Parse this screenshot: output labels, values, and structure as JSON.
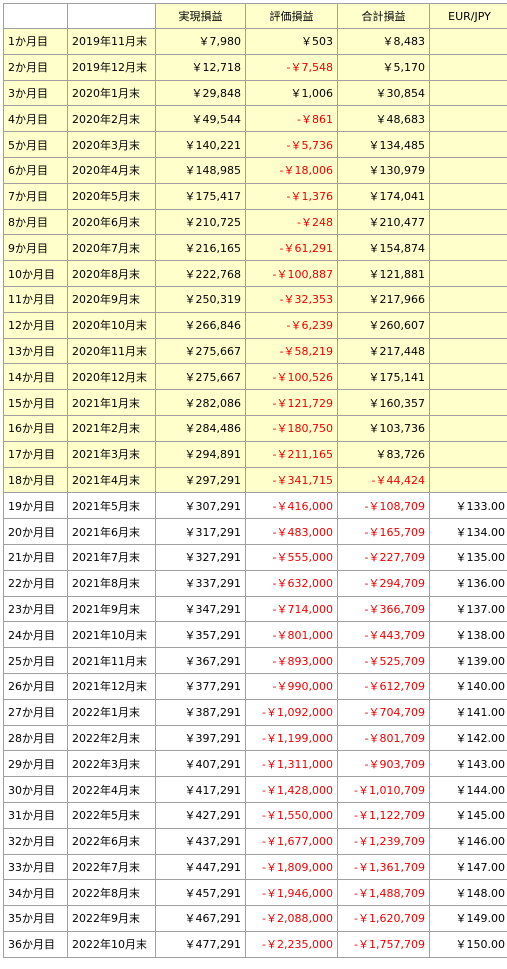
{
  "headers": [
    "",
    "",
    "実現損益",
    "評価損益",
    "合計損益",
    "EUR/JPY"
  ],
  "colors": {
    "highlight": "#ffffcc",
    "negative": "#ee0000",
    "border": "#a0a0a0"
  },
  "rows": [
    {
      "month": "1か月目",
      "date": "2019年11月末",
      "realized": "￥7,980",
      "unrealized": "￥503",
      "total": "￥8,483",
      "rate": "",
      "highlight": true,
      "neg_unrealized": false,
      "neg_total": false
    },
    {
      "month": "2か月目",
      "date": "2019年12月末",
      "realized": "￥12,718",
      "unrealized": "-￥7,548",
      "total": "￥5,170",
      "rate": "",
      "highlight": true,
      "neg_unrealized": true,
      "neg_total": false
    },
    {
      "month": "3か月目",
      "date": "2020年1月末",
      "realized": "￥29,848",
      "unrealized": "￥1,006",
      "total": "￥30,854",
      "rate": "",
      "highlight": true,
      "neg_unrealized": false,
      "neg_total": false
    },
    {
      "month": "4か月目",
      "date": "2020年2月末",
      "realized": "￥49,544",
      "unrealized": "-￥861",
      "total": "￥48,683",
      "rate": "",
      "highlight": true,
      "neg_unrealized": true,
      "neg_total": false
    },
    {
      "month": "5か月目",
      "date": "2020年3月末",
      "realized": "￥140,221",
      "unrealized": "-￥5,736",
      "total": "￥134,485",
      "rate": "",
      "highlight": true,
      "neg_unrealized": true,
      "neg_total": false
    },
    {
      "month": "6か月目",
      "date": "2020年4月末",
      "realized": "￥148,985",
      "unrealized": "-￥18,006",
      "total": "￥130,979",
      "rate": "",
      "highlight": true,
      "neg_unrealized": true,
      "neg_total": false
    },
    {
      "month": "7か月目",
      "date": "2020年5月末",
      "realized": "￥175,417",
      "unrealized": "-￥1,376",
      "total": "￥174,041",
      "rate": "",
      "highlight": true,
      "neg_unrealized": true,
      "neg_total": false
    },
    {
      "month": "8か月目",
      "date": "2020年6月末",
      "realized": "￥210,725",
      "unrealized": "-￥248",
      "total": "￥210,477",
      "rate": "",
      "highlight": true,
      "neg_unrealized": true,
      "neg_total": false
    },
    {
      "month": "9か月目",
      "date": "2020年7月末",
      "realized": "￥216,165",
      "unrealized": "-￥61,291",
      "total": "￥154,874",
      "rate": "",
      "highlight": true,
      "neg_unrealized": true,
      "neg_total": false
    },
    {
      "month": "10か月目",
      "date": "2020年8月末",
      "realized": "￥222,768",
      "unrealized": "-￥100,887",
      "total": "￥121,881",
      "rate": "",
      "highlight": true,
      "neg_unrealized": true,
      "neg_total": false
    },
    {
      "month": "11か月目",
      "date": "2020年9月末",
      "realized": "￥250,319",
      "unrealized": "-￥32,353",
      "total": "￥217,966",
      "rate": "",
      "highlight": true,
      "neg_unrealized": true,
      "neg_total": false
    },
    {
      "month": "12か月目",
      "date": "2020年10月末",
      "realized": "￥266,846",
      "unrealized": "-￥6,239",
      "total": "￥260,607",
      "rate": "",
      "highlight": true,
      "neg_unrealized": true,
      "neg_total": false
    },
    {
      "month": "13か月目",
      "date": "2020年11月末",
      "realized": "￥275,667",
      "unrealized": "-￥58,219",
      "total": "￥217,448",
      "rate": "",
      "highlight": true,
      "neg_unrealized": true,
      "neg_total": false
    },
    {
      "month": "14か月目",
      "date": "2020年12月末",
      "realized": "￥275,667",
      "unrealized": "-￥100,526",
      "total": "￥175,141",
      "rate": "",
      "highlight": true,
      "neg_unrealized": true,
      "neg_total": false
    },
    {
      "month": "15か月目",
      "date": "2021年1月末",
      "realized": "￥282,086",
      "unrealized": "-￥121,729",
      "total": "￥160,357",
      "rate": "",
      "highlight": true,
      "neg_unrealized": true,
      "neg_total": false
    },
    {
      "month": "16か月目",
      "date": "2021年2月末",
      "realized": "￥284,486",
      "unrealized": "-￥180,750",
      "total": "￥103,736",
      "rate": "",
      "highlight": true,
      "neg_unrealized": true,
      "neg_total": false
    },
    {
      "month": "17か月目",
      "date": "2021年3月末",
      "realized": "￥294,891",
      "unrealized": "-￥211,165",
      "total": "￥83,726",
      "rate": "",
      "highlight": true,
      "neg_unrealized": true,
      "neg_total": false
    },
    {
      "month": "18か月目",
      "date": "2021年4月末",
      "realized": "￥297,291",
      "unrealized": "-￥341,715",
      "total": "-￥44,424",
      "rate": "",
      "highlight": true,
      "neg_unrealized": true,
      "neg_total": true
    },
    {
      "month": "19か月目",
      "date": "2021年5月末",
      "realized": "￥307,291",
      "unrealized": "-￥416,000",
      "total": "-￥108,709",
      "rate": "￥133.00",
      "highlight": false,
      "neg_unrealized": true,
      "neg_total": true
    },
    {
      "month": "20か月目",
      "date": "2021年6月末",
      "realized": "￥317,291",
      "unrealized": "-￥483,000",
      "total": "-￥165,709",
      "rate": "￥134.00",
      "highlight": false,
      "neg_unrealized": true,
      "neg_total": true
    },
    {
      "month": "21か月目",
      "date": "2021年7月末",
      "realized": "￥327,291",
      "unrealized": "-￥555,000",
      "total": "-￥227,709",
      "rate": "￥135.00",
      "highlight": false,
      "neg_unrealized": true,
      "neg_total": true
    },
    {
      "month": "22か月目",
      "date": "2021年8月末",
      "realized": "￥337,291",
      "unrealized": "-￥632,000",
      "total": "-￥294,709",
      "rate": "￥136.00",
      "highlight": false,
      "neg_unrealized": true,
      "neg_total": true
    },
    {
      "month": "23か月目",
      "date": "2021年9月末",
      "realized": "￥347,291",
      "unrealized": "-￥714,000",
      "total": "-￥366,709",
      "rate": "￥137.00",
      "highlight": false,
      "neg_unrealized": true,
      "neg_total": true
    },
    {
      "month": "24か月目",
      "date": "2021年10月末",
      "realized": "￥357,291",
      "unrealized": "-￥801,000",
      "total": "-￥443,709",
      "rate": "￥138.00",
      "highlight": false,
      "neg_unrealized": true,
      "neg_total": true
    },
    {
      "month": "25か月目",
      "date": "2021年11月末",
      "realized": "￥367,291",
      "unrealized": "-￥893,000",
      "total": "-￥525,709",
      "rate": "￥139.00",
      "highlight": false,
      "neg_unrealized": true,
      "neg_total": true
    },
    {
      "month": "26か月目",
      "date": "2021年12月末",
      "realized": "￥377,291",
      "unrealized": "-￥990,000",
      "total": "-￥612,709",
      "rate": "￥140.00",
      "highlight": false,
      "neg_unrealized": true,
      "neg_total": true
    },
    {
      "month": "27か月目",
      "date": "2022年1月末",
      "realized": "￥387,291",
      "unrealized": "-￥1,092,000",
      "total": "-￥704,709",
      "rate": "￥141.00",
      "highlight": false,
      "neg_unrealized": true,
      "neg_total": true
    },
    {
      "month": "28か月目",
      "date": "2022年2月末",
      "realized": "￥397,291",
      "unrealized": "-￥1,199,000",
      "total": "-￥801,709",
      "rate": "￥142.00",
      "highlight": false,
      "neg_unrealized": true,
      "neg_total": true
    },
    {
      "month": "29か月目",
      "date": "2022年3月末",
      "realized": "￥407,291",
      "unrealized": "-￥1,311,000",
      "total": "-￥903,709",
      "rate": "￥143.00",
      "highlight": false,
      "neg_unrealized": true,
      "neg_total": true
    },
    {
      "month": "30か月目",
      "date": "2022年4月末",
      "realized": "￥417,291",
      "unrealized": "-￥1,428,000",
      "total": "-￥1,010,709",
      "rate": "￥144.00",
      "highlight": false,
      "neg_unrealized": true,
      "neg_total": true
    },
    {
      "month": "31か月目",
      "date": "2022年5月末",
      "realized": "￥427,291",
      "unrealized": "-￥1,550,000",
      "total": "-￥1,122,709",
      "rate": "￥145.00",
      "highlight": false,
      "neg_unrealized": true,
      "neg_total": true
    },
    {
      "month": "32か月目",
      "date": "2022年6月末",
      "realized": "￥437,291",
      "unrealized": "-￥1,677,000",
      "total": "-￥1,239,709",
      "rate": "￥146.00",
      "highlight": false,
      "neg_unrealized": true,
      "neg_total": true
    },
    {
      "month": "33か月目",
      "date": "2022年7月末",
      "realized": "￥447,291",
      "unrealized": "-￥1,809,000",
      "total": "-￥1,361,709",
      "rate": "￥147.00",
      "highlight": false,
      "neg_unrealized": true,
      "neg_total": true
    },
    {
      "month": "34か月目",
      "date": "2022年8月末",
      "realized": "￥457,291",
      "unrealized": "-￥1,946,000",
      "total": "-￥1,488,709",
      "rate": "￥148.00",
      "highlight": false,
      "neg_unrealized": true,
      "neg_total": true
    },
    {
      "month": "35か月目",
      "date": "2022年9月末",
      "realized": "￥467,291",
      "unrealized": "-￥2,088,000",
      "total": "-￥1,620,709",
      "rate": "￥149.00",
      "highlight": false,
      "neg_unrealized": true,
      "neg_total": true
    },
    {
      "month": "36か月目",
      "date": "2022年10月末",
      "realized": "￥477,291",
      "unrealized": "-￥2,235,000",
      "total": "-￥1,757,709",
      "rate": "￥150.00",
      "highlight": false,
      "neg_unrealized": true,
      "neg_total": true
    }
  ]
}
